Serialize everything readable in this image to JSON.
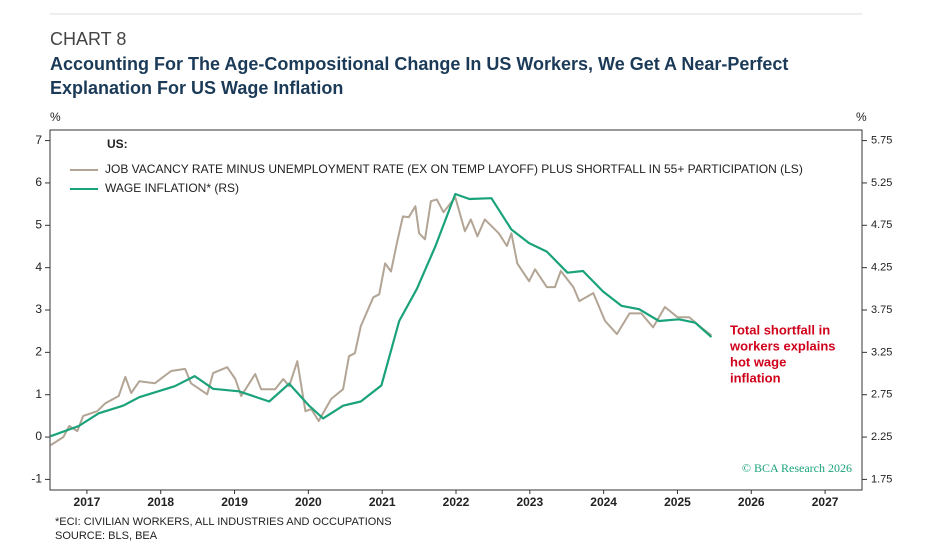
{
  "header": "CHART 8",
  "chart_data": {
    "type": "line",
    "title": [
      "Accounting For The Age-Compositional Change In US Workers, We Get A Near-Perfect",
      "Explanation For US Wage Inflation"
    ],
    "y_unit": "%",
    "y2_unit": "%",
    "legend_title": "US:",
    "xlim": [
      2017,
      2028
    ],
    "xticks": [
      {
        "value": 2017.5,
        "label": "2017"
      },
      {
        "value": 2018.5,
        "label": "2018"
      },
      {
        "value": 2019.5,
        "label": "2019"
      },
      {
        "value": 2020.5,
        "label": "2020"
      },
      {
        "value": 2021.5,
        "label": "2021"
      },
      {
        "value": 2022.5,
        "label": "2022"
      },
      {
        "value": 2023.5,
        "label": "2023"
      },
      {
        "value": 2024.5,
        "label": "2024"
      },
      {
        "value": 2025.5,
        "label": "2025"
      },
      {
        "value": 2026.5,
        "label": "2026"
      },
      {
        "value": 2027.5,
        "label": "2027"
      }
    ],
    "ylim": [
      -1.25,
      7.25
    ],
    "yticks": [
      -1,
      0,
      1,
      2,
      3,
      4,
      5,
      6,
      7
    ],
    "y2lim": [
      1.625,
      5.875
    ],
    "y2ticks": [
      1.75,
      2.25,
      2.75,
      3.25,
      3.75,
      4.25,
      4.75,
      5.25,
      5.75
    ],
    "series": [
      {
        "name": "JOB VACANCY RATE MINUS UNEMPLOYMENT RATE (EX ON TEMP LAYOFF) PLUS SHORTFALL IN 55+ PARTICIPATION (LS)",
        "color": "#b3a595",
        "axis": "y",
        "x": [
          2017.01,
          2017.18,
          2017.26,
          2017.37,
          2017.45,
          2017.64,
          2017.75,
          2017.93,
          2018.02,
          2018.1,
          2018.21,
          2018.42,
          2018.64,
          2018.83,
          2018.91,
          2019.13,
          2019.21,
          2019.4,
          2019.51,
          2019.59,
          2019.78,
          2019.86,
          2020.05,
          2020.16,
          2020.24,
          2020.35,
          2020.46,
          2020.54,
          2020.64,
          2020.81,
          2020.97,
          2021.05,
          2021.13,
          2021.21,
          2021.38,
          2021.46,
          2021.54,
          2021.62,
          2021.7,
          2021.78,
          2021.86,
          2021.95,
          2022.0,
          2022.08,
          2022.16,
          2022.24,
          2022.33,
          2022.49,
          2022.62,
          2022.7,
          2022.79,
          2022.89,
          2023.08,
          2023.19,
          2023.25,
          2023.33,
          2023.49,
          2023.57,
          2023.73,
          2023.84,
          2023.92,
          2024.09,
          2024.17,
          2024.36,
          2024.52,
          2024.68,
          2024.85,
          2025.01,
          2025.17,
          2025.33,
          2025.5,
          2025.66,
          2025.82,
          2025.96
        ],
        "values": [
          -0.19,
          0.0,
          0.26,
          0.14,
          0.5,
          0.61,
          0.8,
          0.97,
          1.42,
          1.04,
          1.32,
          1.27,
          1.56,
          1.61,
          1.27,
          1.01,
          1.51,
          1.65,
          1.37,
          0.97,
          1.49,
          1.13,
          1.13,
          1.37,
          1.2,
          1.79,
          0.61,
          0.66,
          0.38,
          0.9,
          1.13,
          1.91,
          1.98,
          2.62,
          3.3,
          3.37,
          4.1,
          3.91,
          4.58,
          5.21,
          5.19,
          5.45,
          4.81,
          4.67,
          5.57,
          5.61,
          5.31,
          5.66,
          4.86,
          5.14,
          4.74,
          5.14,
          4.81,
          4.51,
          4.81,
          4.1,
          3.68,
          3.96,
          3.54,
          3.54,
          3.92,
          3.54,
          3.21,
          3.4,
          2.74,
          2.43,
          2.92,
          2.92,
          2.59,
          3.07,
          2.83,
          2.83,
          2.59,
          2.4
        ]
      },
      {
        "name": "WAGE INFLATION* (RS)",
        "color": "#1aa37a",
        "axis": "y2",
        "x": [
          2017.01,
          2017.39,
          2017.66,
          2017.99,
          2018.21,
          2018.69,
          2018.96,
          2019.21,
          2019.56,
          2019.97,
          2020.24,
          2020.51,
          2020.7,
          2020.97,
          2021.21,
          2021.49,
          2021.73,
          2021.97,
          2022.22,
          2022.49,
          2022.68,
          2022.98,
          2023.25,
          2023.49,
          2023.73,
          2024.01,
          2024.22,
          2024.49,
          2024.74,
          2024.98,
          2025.25,
          2025.52,
          2025.74,
          2025.96
        ],
        "values": [
          2.26,
          2.38,
          2.53,
          2.62,
          2.72,
          2.85,
          2.97,
          2.82,
          2.79,
          2.67,
          2.88,
          2.62,
          2.47,
          2.62,
          2.67,
          2.86,
          3.62,
          4.0,
          4.5,
          5.12,
          5.06,
          5.07,
          4.7,
          4.54,
          4.44,
          4.19,
          4.21,
          3.97,
          3.8,
          3.76,
          3.62,
          3.64,
          3.6,
          3.43
        ]
      }
    ],
    "annotation": [
      "Total shortfall in",
      "workers explains",
      "hot wage",
      "inflation"
    ],
    "annotation_color": "#d0021b",
    "watermark": "© BCA Research 2026"
  },
  "footnote": "*ECI: CIVILIAN WORKERS, ALL INDUSTRIES AND OCCUPATIONS",
  "source": "SOURCE: BLS, BEA"
}
